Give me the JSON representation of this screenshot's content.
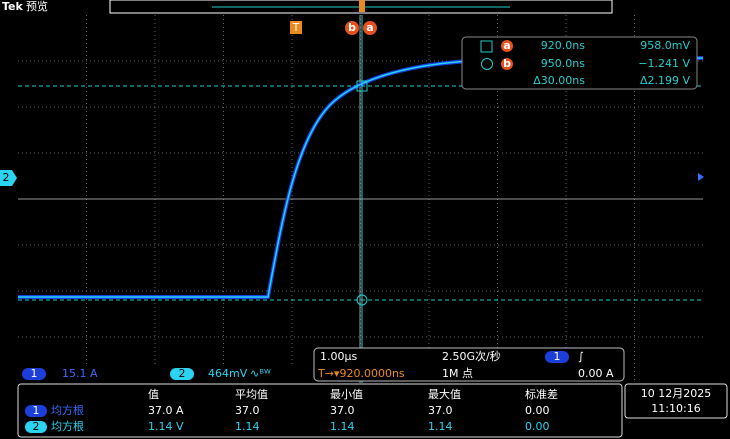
{
  "header": {
    "brand": "Tek",
    "mode": "预览"
  },
  "markers": {
    "trigger": "T",
    "cursor_b": "b",
    "cursor_a": "a",
    "channel2": "2"
  },
  "cursor_readout": {
    "rows": [
      {
        "marker": "a",
        "time": "920.0ns",
        "level": "958.0mV"
      },
      {
        "marker": "b",
        "time": "950.0ns",
        "level": "−1.241 V"
      },
      {
        "time": "Δ30.00ns",
        "level": "Δ2.199 V"
      }
    ]
  },
  "channel_bar": {
    "ch1": {
      "id": "1",
      "scale": "15.1 A"
    },
    "ch2": {
      "id": "2",
      "scale": "464mV",
      "bw": "∿ᴮᵂ"
    }
  },
  "timebase": {
    "scale": "1.00µs",
    "sample_rate": "2.50G次/秒",
    "trigger_channel": "1",
    "trigger_slope": "∫",
    "position": "T→▾920.0000ns",
    "record": "1M 点",
    "trigger_level": "0.00 A"
  },
  "measurements": {
    "header": [
      "值",
      "平均值",
      "最小值",
      "最大值",
      "标准差"
    ],
    "rows": [
      {
        "channel": "1",
        "type": "均方根",
        "values": [
          "37.0 A",
          "37.0",
          "37.0",
          "37.0",
          "0.00"
        ]
      },
      {
        "channel": "2",
        "type": "均方根",
        "values": [
          "1.14 V",
          "1.14",
          "1.14",
          "1.14",
          "0.00"
        ]
      }
    ]
  },
  "datetime": {
    "date": "10 12月2025",
    "time": "11:10:16"
  }
}
